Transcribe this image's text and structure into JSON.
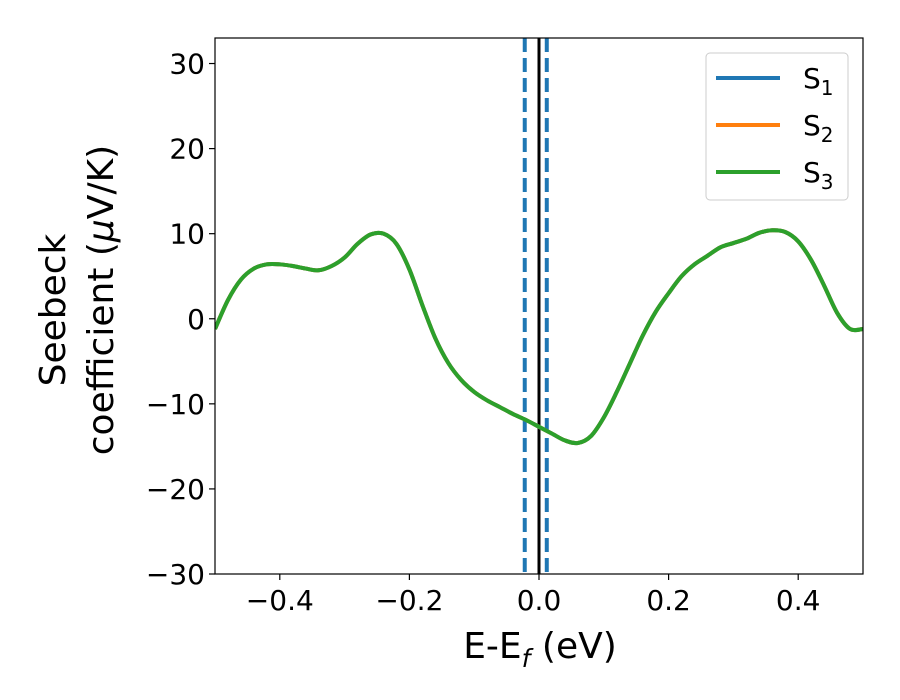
{
  "chart_data": {
    "type": "line",
    "xlabel": {
      "main": "E-E",
      "sub": "f",
      "unit": " (eV)"
    },
    "ylabel": {
      "line1": "Seebeck",
      "line2_prefix": "coefficient  (",
      "mu": "μ",
      "line2_suffix": "V/K)"
    },
    "xlim": [
      -0.5,
      0.5
    ],
    "ylim": [
      -30,
      33
    ],
    "xticks": [
      -0.4,
      -0.2,
      0.0,
      0.2,
      0.4
    ],
    "xtick_labels": [
      "−0.4",
      "−0.2",
      "0.0",
      "0.2",
      "0.4"
    ],
    "yticks": [
      -30,
      -20,
      -10,
      0,
      10,
      20,
      30
    ],
    "ytick_labels": [
      "−30",
      "−20",
      "−10",
      "0",
      "10",
      "20",
      "30"
    ],
    "legend_position": "top-right",
    "series": [
      {
        "name": "S",
        "sub": "1",
        "color": "#1f77b4"
      },
      {
        "name": "S",
        "sub": "2",
        "color": "#ff7f0e"
      },
      {
        "name": "S",
        "sub": "3",
        "color": "#2ca02c"
      }
    ],
    "curve": {
      "x": [
        -0.5,
        -0.48,
        -0.46,
        -0.44,
        -0.42,
        -0.4,
        -0.38,
        -0.36,
        -0.34,
        -0.32,
        -0.3,
        -0.28,
        -0.26,
        -0.24,
        -0.22,
        -0.2,
        -0.18,
        -0.16,
        -0.14,
        -0.12,
        -0.1,
        -0.08,
        -0.06,
        -0.04,
        -0.02,
        0.0,
        0.02,
        0.04,
        0.06,
        0.08,
        0.1,
        0.12,
        0.14,
        0.16,
        0.18,
        0.2,
        0.22,
        0.24,
        0.26,
        0.28,
        0.3,
        0.32,
        0.34,
        0.36,
        0.38,
        0.4,
        0.42,
        0.44,
        0.46,
        0.48,
        0.5
      ],
      "y": [
        -1.2,
        2.2,
        4.6,
        5.9,
        6.4,
        6.4,
        6.2,
        5.9,
        5.7,
        6.2,
        7.2,
        8.8,
        9.9,
        10.0,
        8.8,
        5.8,
        1.6,
        -2.3,
        -5.2,
        -7.2,
        -8.6,
        -9.6,
        -10.4,
        -11.2,
        -11.9,
        -12.7,
        -13.5,
        -14.3,
        -14.6,
        -13.8,
        -11.6,
        -8.6,
        -5.3,
        -2.0,
        0.8,
        3.0,
        5.0,
        6.4,
        7.4,
        8.4,
        8.9,
        9.4,
        10.1,
        10.4,
        10.2,
        9.1,
        6.9,
        3.9,
        0.7,
        -1.2,
        -1.2
      ]
    },
    "vlines": [
      {
        "x": -0.022,
        "style": "dashed",
        "color": "#1f77b4"
      },
      {
        "x": 0.0,
        "style": "solid",
        "color": "#000000"
      },
      {
        "x": 0.012,
        "style": "dashed",
        "color": "#1f77b4"
      }
    ]
  }
}
